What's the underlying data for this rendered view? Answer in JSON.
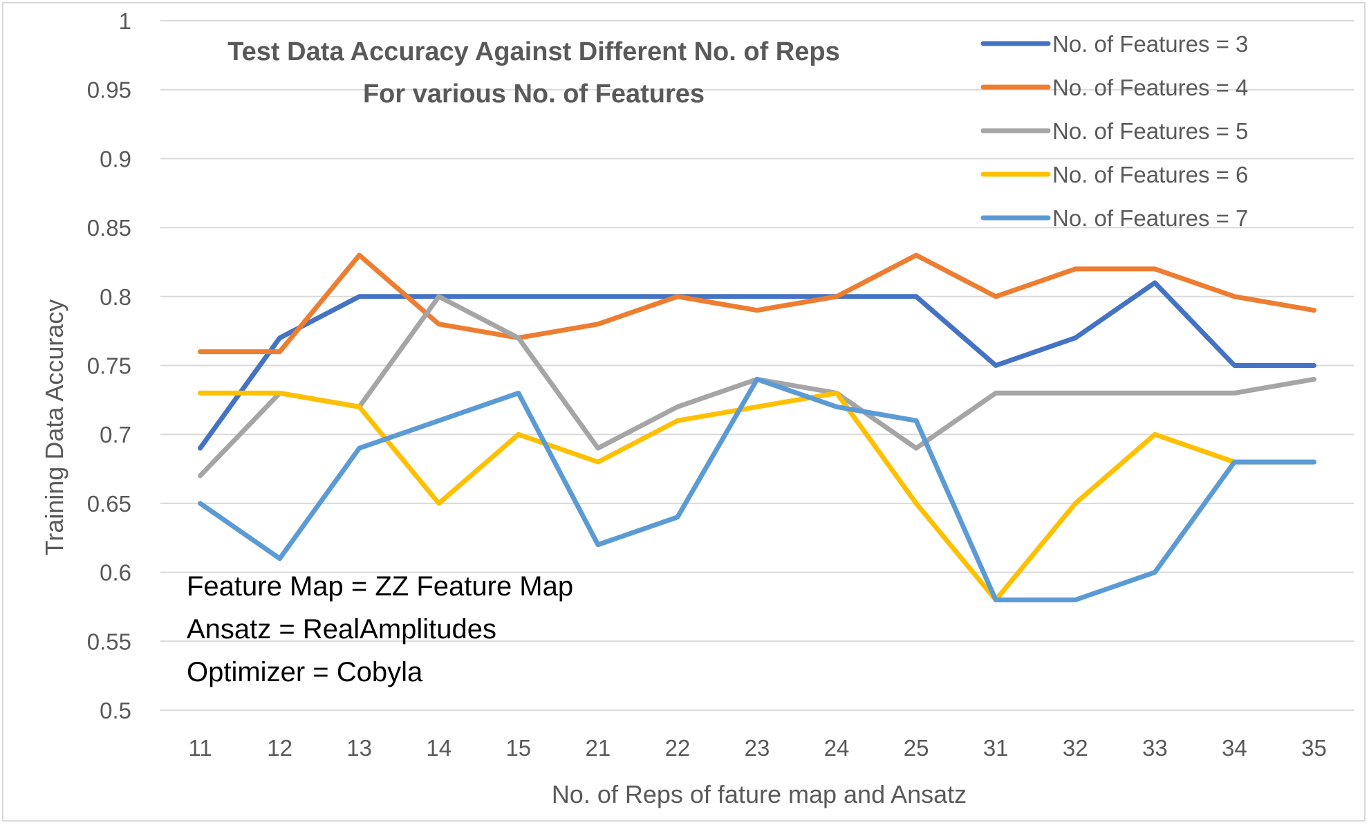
{
  "chart_data": {
    "type": "line",
    "title": [
      "Test Data Accuracy Against Different No. of Reps",
      "For various No. of Features"
    ],
    "xlabel": "No. of Reps of fature map and Ansatz",
    "ylabel": "Training Data Accuracy",
    "ylim": [
      0.5,
      1
    ],
    "yticks": [
      "0.5",
      "0.55",
      "0.6",
      "0.65",
      "0.7",
      "0.75",
      "0.8",
      "0.85",
      "0.9",
      "0.95",
      "1"
    ],
    "grid": "horizontal",
    "legend_position": "top-right",
    "categories": [
      "11",
      "12",
      "13",
      "14",
      "15",
      "21",
      "22",
      "23",
      "24",
      "25",
      "31",
      "32",
      "33",
      "34",
      "35"
    ],
    "series": [
      {
        "name": "No. of Features = 3",
        "color": "#4472c4",
        "values": [
          0.69,
          0.77,
          0.8,
          0.8,
          0.8,
          0.8,
          0.8,
          0.8,
          0.8,
          0.8,
          0.75,
          0.77,
          0.81,
          0.75,
          0.75
        ]
      },
      {
        "name": "No. of Features = 4",
        "color": "#ed7d31",
        "values": [
          0.76,
          0.76,
          0.83,
          0.78,
          0.77,
          0.78,
          0.8,
          0.79,
          0.8,
          0.83,
          0.8,
          0.82,
          0.82,
          0.8,
          0.79
        ]
      },
      {
        "name": "No. of Features = 5",
        "color": "#a5a5a5",
        "values": [
          0.67,
          0.73,
          0.72,
          0.8,
          0.77,
          0.69,
          0.72,
          0.74,
          0.73,
          0.69,
          0.73,
          0.73,
          0.73,
          0.73,
          0.74
        ]
      },
      {
        "name": "No. of Features = 6",
        "color": "#ffc000",
        "values": [
          0.73,
          0.73,
          0.72,
          0.65,
          0.7,
          0.68,
          0.71,
          0.72,
          0.73,
          0.65,
          0.58,
          0.65,
          0.7,
          0.68,
          0.68
        ]
      },
      {
        "name": "No. of Features = 7",
        "color": "#5b9bd5",
        "values": [
          0.65,
          0.61,
          0.69,
          0.71,
          0.73,
          0.62,
          0.64,
          0.74,
          0.72,
          0.71,
          0.58,
          0.58,
          0.6,
          0.68,
          0.68
        ]
      }
    ],
    "annotations": [
      "Feature Map = ZZ Feature Map",
      "Ansatz = RealAmplitudes",
      "Optimizer = Cobyla"
    ]
  }
}
